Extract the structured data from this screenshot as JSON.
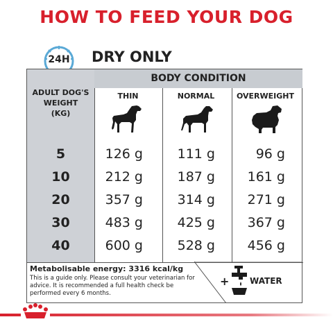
{
  "title": "HOW TO FEED YOUR DOG",
  "clock_label": "24H",
  "subtitle": "DRY ONLY",
  "table": {
    "group_header": "BODY CONDITION",
    "weight_header": [
      "ADULT DOG'S",
      "WEIGHT",
      "(KG)"
    ],
    "columns": [
      "THIN",
      "NORMAL",
      "OVERWEIGHT"
    ],
    "rows": [
      {
        "kg": "5",
        "values": [
          "126 g",
          "111 g",
          "96 g"
        ]
      },
      {
        "kg": "10",
        "values": [
          "212 g",
          "187 g",
          "161 g"
        ]
      },
      {
        "kg": "20",
        "values": [
          "357 g",
          "314 g",
          "271 g"
        ]
      },
      {
        "kg": "30",
        "values": [
          "483 g",
          "425 g",
          "367 g"
        ]
      },
      {
        "kg": "40",
        "values": [
          "600 g",
          "528 g",
          "456 g"
        ]
      }
    ]
  },
  "energy": "Metabolisable energy: 3316 kcal/kg",
  "note": "This is a guide only. Please consult your veterinarian for advice. It is recommended a full health check be performed every 6 months.",
  "water": {
    "plus": "+",
    "label": "WATER"
  },
  "colors": {
    "brand_red": "#d8202c",
    "panel_grey": "#ced1d6",
    "clock_blue": "#5aa9d6"
  },
  "icons": [
    "clock-24h-icon",
    "thin-dog-icon",
    "normal-dog-icon",
    "overweight-dog-icon",
    "water-tap-bowl-icon",
    "royal-canin-crown-icon"
  ]
}
